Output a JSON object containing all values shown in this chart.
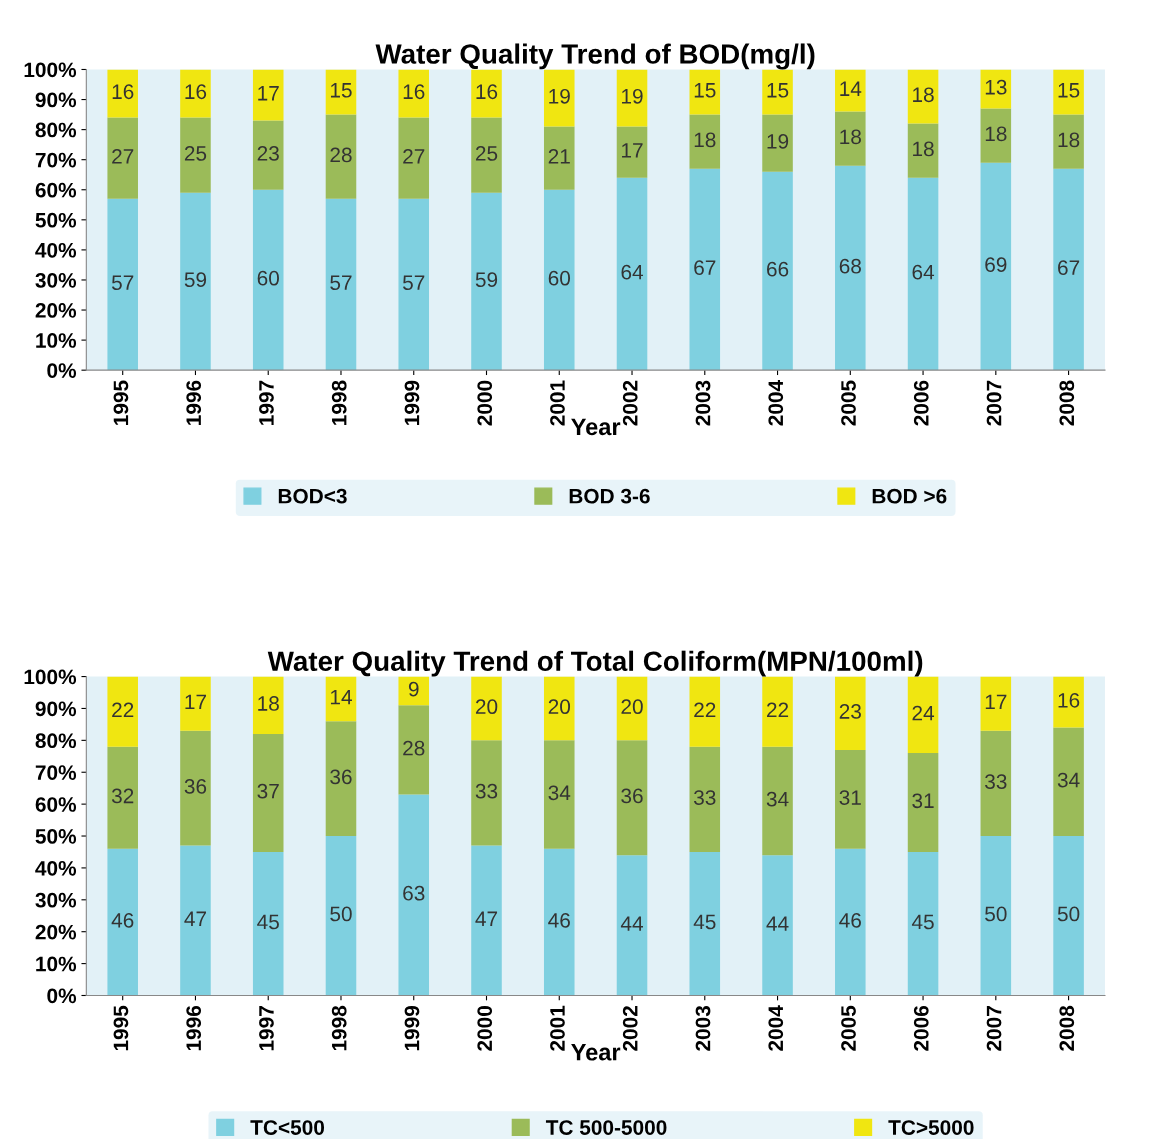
{
  "chart_data": [
    {
      "type": "bar",
      "title": "Water Quality Trend of BOD(mg/l)",
      "xlabel": "Year",
      "stacked": true,
      "data_labels": true,
      "legend": "bottom",
      "grid": false,
      "categories": [
        "1995",
        "1996",
        "1997",
        "1998",
        "1999",
        "2000",
        "2001",
        "2002",
        "2003",
        "2004",
        "2005",
        "2006",
        "2007",
        "2008"
      ],
      "ylim": [
        0,
        100
      ],
      "yticks": [
        {
          "value": 0,
          "label": "0%"
        },
        {
          "value": 10,
          "label": "10%"
        },
        {
          "value": 20,
          "label": "20%"
        },
        {
          "value": 30,
          "label": "30%"
        },
        {
          "value": 40,
          "label": "40%"
        },
        {
          "value": 50,
          "label": "50%"
        },
        {
          "value": 60,
          "label": "60%"
        },
        {
          "value": 70,
          "label": "70%"
        },
        {
          "value": 80,
          "label": "80%"
        },
        {
          "value": 90,
          "label": "90%"
        },
        {
          "value": 100,
          "label": "100%"
        }
      ],
      "series": [
        {
          "name": "BOD<3",
          "color": "#7fd0e0",
          "values": [
            57,
            59,
            60,
            57,
            57,
            59,
            60,
            64,
            67,
            66,
            68,
            64,
            69,
            67
          ]
        },
        {
          "name": "BOD 3-6",
          "color": "#9bbb59",
          "values": [
            27,
            25,
            23,
            28,
            27,
            25,
            21,
            17,
            18,
            19,
            18,
            18,
            18,
            18
          ]
        },
        {
          "name": "BOD >6",
          "color": "#f0e611",
          "values": [
            16,
            16,
            17,
            15,
            16,
            16,
            19,
            19,
            15,
            15,
            14,
            18,
            13,
            15
          ]
        }
      ]
    },
    {
      "type": "bar",
      "title": "Water Quality Trend of Total Coliform(MPN/100ml)",
      "xlabel": "Year",
      "stacked": true,
      "data_labels": true,
      "legend": "bottom",
      "grid": false,
      "categories": [
        "1995",
        "1996",
        "1997",
        "1998",
        "1999",
        "2000",
        "2001",
        "2002",
        "2003",
        "2004",
        "2005",
        "2006",
        "2007",
        "2008"
      ],
      "ylim": [
        0,
        100
      ],
      "yticks": [
        {
          "value": 0,
          "label": "0%"
        },
        {
          "value": 10,
          "label": "10%"
        },
        {
          "value": 20,
          "label": "20%"
        },
        {
          "value": 30,
          "label": "30%"
        },
        {
          "value": 40,
          "label": "40%"
        },
        {
          "value": 50,
          "label": "50%"
        },
        {
          "value": 60,
          "label": "60%"
        },
        {
          "value": 70,
          "label": "70%"
        },
        {
          "value": 80,
          "label": "80%"
        },
        {
          "value": 90,
          "label": "90%"
        },
        {
          "value": 100,
          "label": "100%"
        }
      ],
      "series": [
        {
          "name": "TC<500",
          "color": "#7fd0e0",
          "values": [
            46,
            47,
            45,
            50,
            63,
            47,
            46,
            44,
            45,
            44,
            46,
            45,
            50,
            50
          ]
        },
        {
          "name": "TC 500-5000",
          "color": "#9bbb59",
          "values": [
            32,
            36,
            37,
            36,
            28,
            33,
            34,
            36,
            33,
            34,
            31,
            31,
            33,
            34
          ]
        },
        {
          "name": "TC>5000",
          "color": "#f0e611",
          "values": [
            22,
            17,
            18,
            14,
            9,
            20,
            20,
            20,
            22,
            22,
            23,
            24,
            17,
            16
          ]
        }
      ]
    }
  ]
}
